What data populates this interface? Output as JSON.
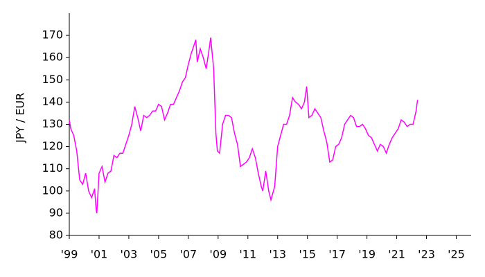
{
  "chart_data": {
    "type": "line",
    "y_label": "JPY / EUR",
    "x": [
      1999.0,
      1999.1,
      1999.3,
      1999.5,
      1999.7,
      1999.9,
      2000.1,
      2000.3,
      2000.5,
      2000.7,
      2000.8,
      2000.85,
      2001.0,
      2001.2,
      2001.4,
      2001.6,
      2001.8,
      2002.0,
      2002.2,
      2002.4,
      2002.6,
      2002.8,
      2003.0,
      2003.2,
      2003.4,
      2003.6,
      2003.8,
      2004.0,
      2004.2,
      2004.4,
      2004.6,
      2004.8,
      2005.0,
      2005.2,
      2005.4,
      2005.6,
      2005.8,
      2006.0,
      2006.2,
      2006.4,
      2006.6,
      2006.8,
      2007.0,
      2007.2,
      2007.4,
      2007.5,
      2007.6,
      2007.8,
      2008.0,
      2008.2,
      2008.4,
      2008.5,
      2008.7,
      2008.85,
      2008.95,
      2009.1,
      2009.3,
      2009.5,
      2009.7,
      2009.9,
      2010.1,
      2010.3,
      2010.5,
      2010.7,
      2010.9,
      2011.1,
      2011.3,
      2011.5,
      2011.7,
      2011.9,
      2012.0,
      2012.2,
      2012.4,
      2012.55,
      2012.8,
      2013.0,
      2013.2,
      2013.4,
      2013.6,
      2013.8,
      2014.0,
      2014.2,
      2014.4,
      2014.6,
      2014.8,
      2014.95,
      2015.1,
      2015.3,
      2015.5,
      2015.7,
      2015.9,
      2016.1,
      2016.3,
      2016.5,
      2016.7,
      2016.9,
      2017.1,
      2017.3,
      2017.5,
      2017.7,
      2017.9,
      2018.1,
      2018.3,
      2018.5,
      2018.7,
      2018.9,
      2019.1,
      2019.3,
      2019.5,
      2019.7,
      2019.9,
      2020.1,
      2020.3,
      2020.5,
      2020.7,
      2020.9,
      2021.1,
      2021.3,
      2021.5,
      2021.7,
      2021.9,
      2022.1,
      2022.3,
      2022.4
    ],
    "series": [
      {
        "color": "#ff00ff",
        "values": [
          132,
          128,
          125,
          118,
          105,
          103,
          108,
          100,
          97,
          101,
          92,
          90,
          108,
          111,
          104,
          108,
          109,
          116,
          115,
          117,
          117,
          121,
          125,
          130,
          138,
          133,
          127,
          134,
          133,
          134,
          136,
          136,
          139,
          138,
          132,
          135,
          139,
          139,
          142,
          145,
          149,
          151,
          157,
          162,
          166,
          168,
          158,
          164,
          160,
          155,
          164,
          169,
          155,
          126,
          118,
          117,
          130,
          134,
          134,
          133,
          126,
          121,
          111,
          112,
          113,
          115,
          119,
          115,
          108,
          102,
          100,
          109,
          100,
          96,
          102,
          120,
          125,
          130,
          130,
          134,
          142,
          140,
          139,
          137,
          140,
          147,
          133,
          134,
          137,
          135,
          133,
          127,
          122,
          113,
          114,
          120,
          121,
          124,
          130,
          132,
          134,
          133,
          129,
          129,
          130,
          128,
          125,
          124,
          121,
          118,
          121,
          120,
          117,
          121,
          124,
          126,
          128,
          132,
          131,
          129,
          130,
          130,
          136,
          141
        ]
      }
    ],
    "xlim": [
      1999,
      2026
    ],
    "xticks": [
      {
        "value": 1999,
        "label": "'99"
      },
      {
        "value": 2001,
        "label": "'01"
      },
      {
        "value": 2003,
        "label": "'03"
      },
      {
        "value": 2005,
        "label": "'05"
      },
      {
        "value": 2007,
        "label": "'07"
      },
      {
        "value": 2009,
        "label": "'09"
      },
      {
        "value": 2011,
        "label": "'11"
      },
      {
        "value": 2013,
        "label": "'13"
      },
      {
        "value": 2015,
        "label": "'15"
      },
      {
        "value": 2017,
        "label": "'17"
      },
      {
        "value": 2019,
        "label": "'19"
      },
      {
        "value": 2021,
        "label": "'21"
      },
      {
        "value": 2023,
        "label": "'23"
      },
      {
        "value": 2025,
        "label": "'25"
      }
    ],
    "ylim": [
      80,
      180
    ],
    "yticks": [
      80,
      90,
      100,
      110,
      120,
      130,
      140,
      150,
      160,
      170
    ]
  }
}
